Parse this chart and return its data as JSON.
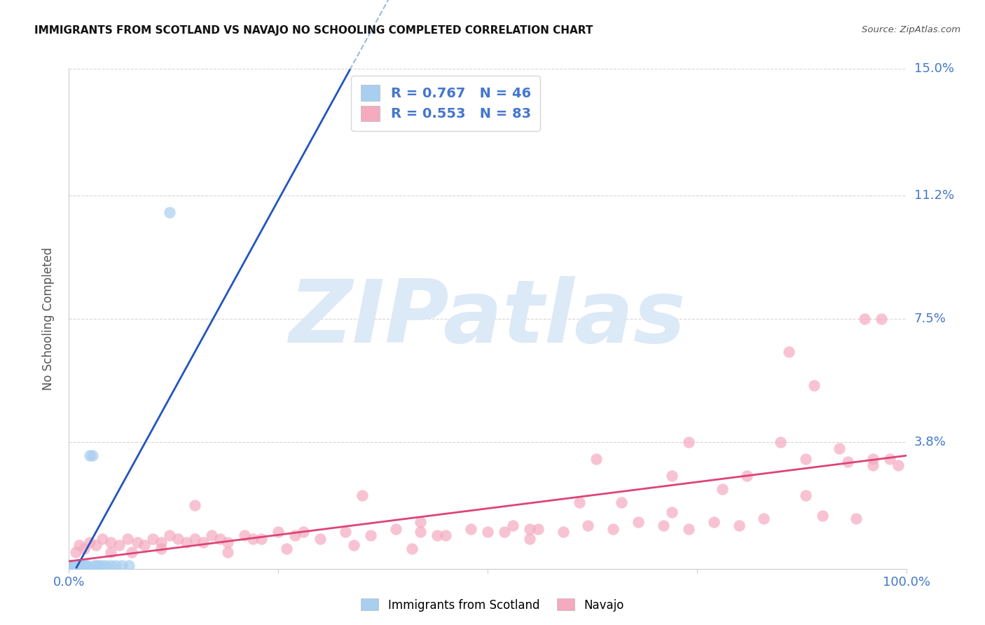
{
  "title": "IMMIGRANTS FROM SCOTLAND VS NAVAJO NO SCHOOLING COMPLETED CORRELATION CHART",
  "source": "Source: ZipAtlas.com",
  "ylabel": "No Schooling Completed",
  "xlim": [
    0.0,
    1.0
  ],
  "ylim": [
    0.0,
    0.15
  ],
  "ytick_positions": [
    0.0,
    0.038,
    0.075,
    0.112,
    0.15
  ],
  "ytick_labels": [
    "",
    "3.8%",
    "7.5%",
    "11.2%",
    "15.0%"
  ],
  "xtick_positions": [
    0.0,
    0.25,
    0.5,
    0.75,
    1.0
  ],
  "xtick_labels": [
    "0.0%",
    "",
    "",
    "",
    "100.0%"
  ],
  "scotland_color": "#A8CEF0",
  "navajo_color": "#F4AABF",
  "scotland_edge_color": "#6699CC",
  "navajo_edge_color": "#DD7799",
  "scotland_line_color": "#2255BB",
  "scotland_dash_color": "#99BBDD",
  "navajo_line_color": "#DD4477",
  "tick_label_color": "#4477CC",
  "watermark_color": "#DCE9F6",
  "grid_color": "#CCCCCC",
  "border_color": "#CCCCCC",
  "legend_text_color": "#333333",
  "legend_number_color": "#4477CC",
  "legend_scotland_label": "Immigrants from Scotland",
  "legend_navajo_label": "Navajo",
  "scotland_x": [
    0.0005,
    0.001,
    0.001,
    0.001,
    0.0015,
    0.002,
    0.002,
    0.002,
    0.003,
    0.003,
    0.003,
    0.004,
    0.004,
    0.005,
    0.005,
    0.005,
    0.006,
    0.006,
    0.007,
    0.007,
    0.008,
    0.008,
    0.009,
    0.01,
    0.01,
    0.011,
    0.012,
    0.013,
    0.014,
    0.015,
    0.016,
    0.018,
    0.02,
    0.022,
    0.025,
    0.028,
    0.03,
    0.033,
    0.036,
    0.04,
    0.044,
    0.05,
    0.056,
    0.063,
    0.072,
    0.12
  ],
  "scotland_y": [
    0.0005,
    0.001,
    0.001,
    0.001,
    0.001,
    0.001,
    0.001,
    0.001,
    0.001,
    0.001,
    0.001,
    0.001,
    0.001,
    0.001,
    0.001,
    0.001,
    0.001,
    0.001,
    0.001,
    0.001,
    0.001,
    0.001,
    0.001,
    0.001,
    0.001,
    0.001,
    0.001,
    0.001,
    0.001,
    0.001,
    0.001,
    0.001,
    0.001,
    0.001,
    0.034,
    0.034,
    0.001,
    0.001,
    0.001,
    0.001,
    0.001,
    0.001,
    0.001,
    0.001,
    0.001,
    0.107
  ],
  "navajo_x": [
    0.008,
    0.012,
    0.018,
    0.025,
    0.032,
    0.04,
    0.05,
    0.06,
    0.07,
    0.082,
    0.09,
    0.1,
    0.11,
    0.12,
    0.13,
    0.14,
    0.15,
    0.16,
    0.17,
    0.18,
    0.19,
    0.21,
    0.23,
    0.25,
    0.27,
    0.3,
    0.33,
    0.36,
    0.39,
    0.42,
    0.45,
    0.48,
    0.5,
    0.53,
    0.56,
    0.59,
    0.62,
    0.65,
    0.68,
    0.71,
    0.74,
    0.77,
    0.8,
    0.83,
    0.86,
    0.88,
    0.9,
    0.92,
    0.94,
    0.96,
    0.98,
    0.99,
    0.15,
    0.22,
    0.35,
    0.28,
    0.44,
    0.52,
    0.61,
    0.72,
    0.81,
    0.89,
    0.95,
    0.97,
    0.05,
    0.075,
    0.11,
    0.19,
    0.26,
    0.34,
    0.41,
    0.55,
    0.66,
    0.78,
    0.85,
    0.93,
    0.42,
    0.63,
    0.74,
    0.88,
    0.96,
    0.72,
    0.55
  ],
  "navajo_y": [
    0.005,
    0.007,
    0.006,
    0.008,
    0.007,
    0.009,
    0.008,
    0.007,
    0.009,
    0.008,
    0.007,
    0.009,
    0.008,
    0.01,
    0.009,
    0.008,
    0.009,
    0.008,
    0.01,
    0.009,
    0.008,
    0.01,
    0.009,
    0.011,
    0.01,
    0.009,
    0.011,
    0.01,
    0.012,
    0.011,
    0.01,
    0.012,
    0.011,
    0.013,
    0.012,
    0.011,
    0.013,
    0.012,
    0.014,
    0.013,
    0.012,
    0.014,
    0.013,
    0.015,
    0.065,
    0.022,
    0.016,
    0.036,
    0.015,
    0.031,
    0.033,
    0.031,
    0.019,
    0.009,
    0.022,
    0.011,
    0.01,
    0.011,
    0.02,
    0.028,
    0.028,
    0.055,
    0.075,
    0.075,
    0.005,
    0.005,
    0.006,
    0.005,
    0.006,
    0.007,
    0.006,
    0.012,
    0.02,
    0.024,
    0.038,
    0.032,
    0.014,
    0.033,
    0.038,
    0.033,
    0.033,
    0.017,
    0.009
  ]
}
